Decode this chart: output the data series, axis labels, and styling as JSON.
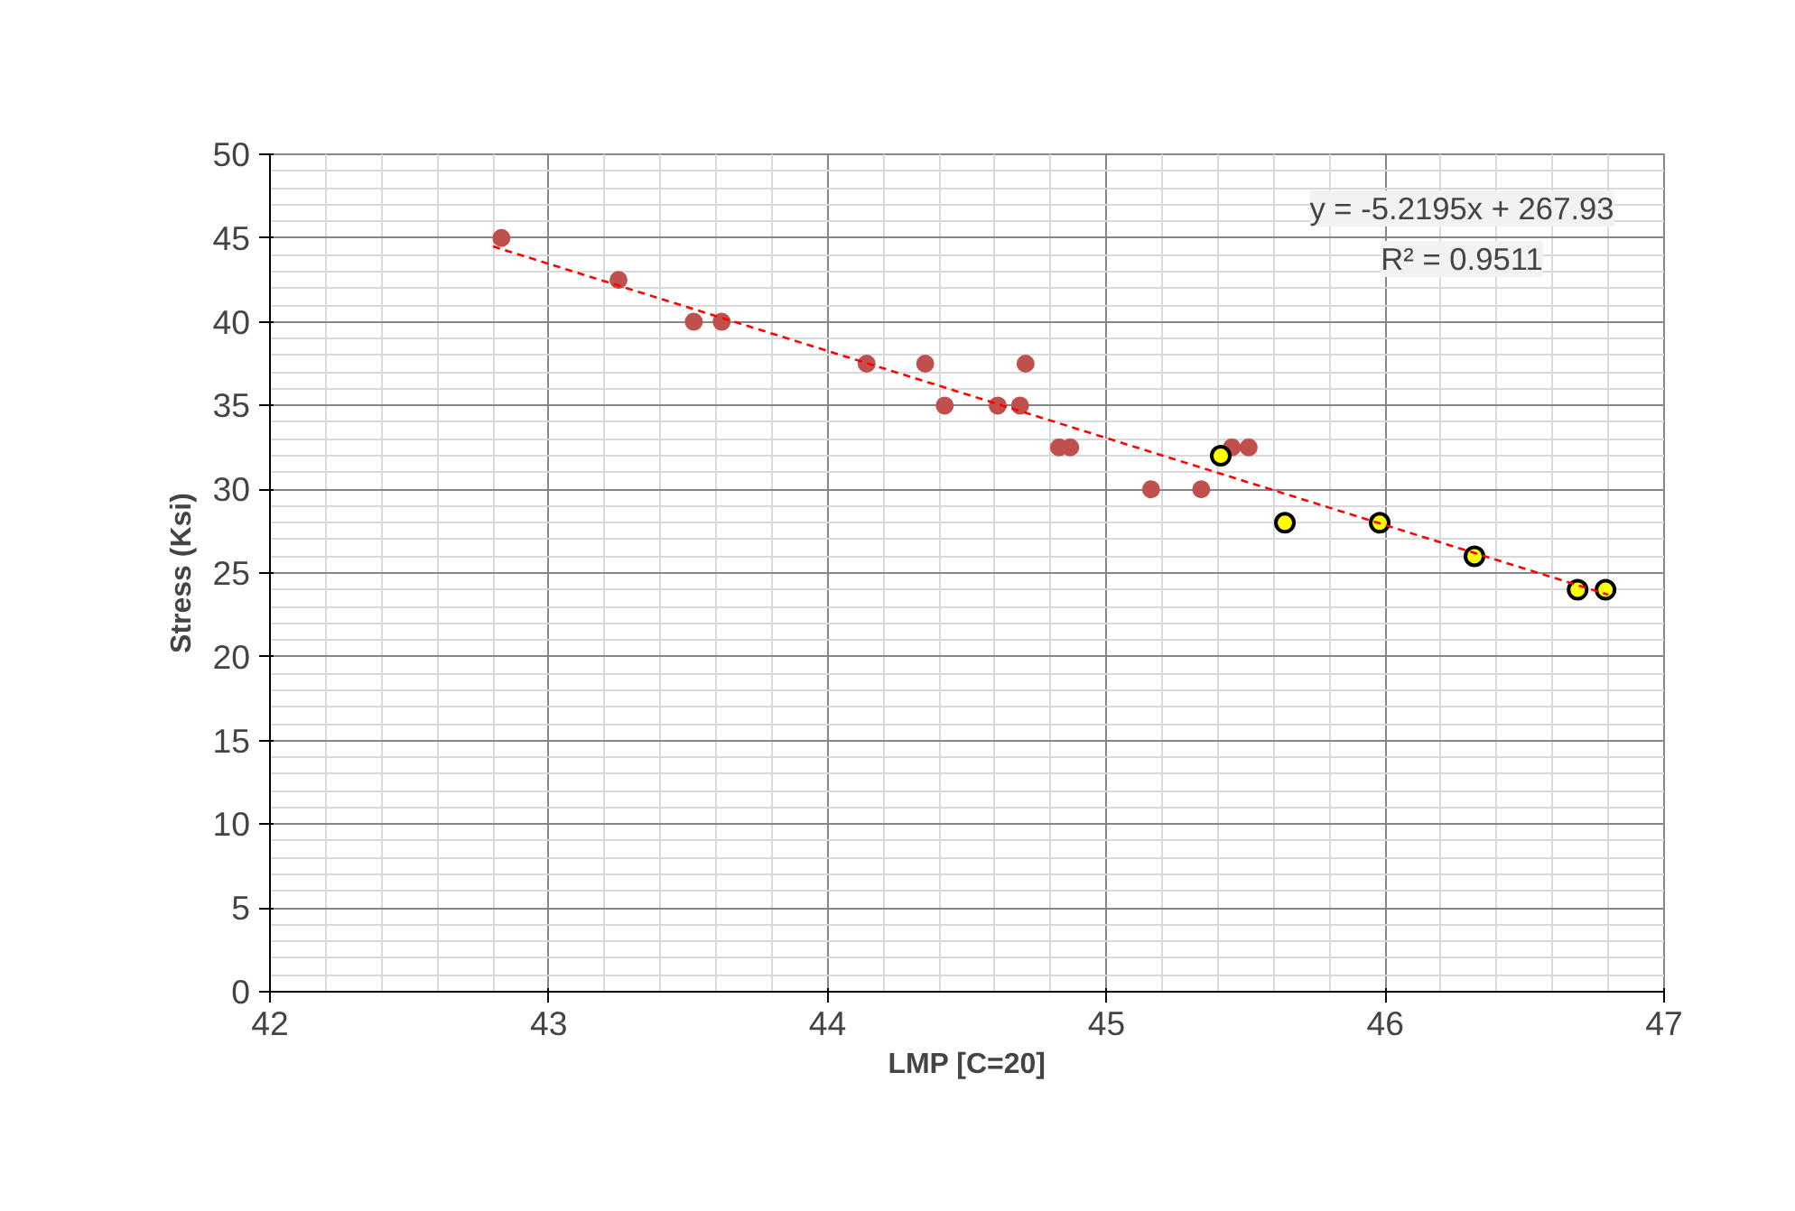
{
  "chart_data": {
    "type": "scatter",
    "xlabel": "LMP [C=20]",
    "ylabel": "Stress (Ksi)",
    "xlim": [
      42,
      47
    ],
    "xticks": [
      42,
      43,
      44,
      45,
      46,
      47
    ],
    "ylim": [
      0,
      50
    ],
    "yticks": [
      0,
      5,
      10,
      15,
      20,
      25,
      30,
      35,
      40,
      45,
      50
    ],
    "grid": true,
    "marker": "circle",
    "annotations": [
      "y = -5.2195x + 267.93",
      "R² = 0.9511"
    ],
    "series": [
      {
        "color": "#c0504d",
        "x": [
          42.83,
          43.25,
          43.52,
          43.62,
          44.14,
          44.35,
          44.42,
          44.61,
          44.69,
          44.71,
          44.83,
          44.87,
          45.16,
          45.34,
          45.45,
          45.51
        ],
        "values": [
          45,
          42.5,
          40,
          40,
          37.5,
          37.5,
          35,
          35,
          35,
          37.5,
          32.5,
          32.5,
          30,
          30,
          32.5,
          32.5
        ]
      },
      {
        "color": "#ffff00",
        "x": [
          45.41,
          45.64,
          45.98,
          46.32,
          46.69,
          46.79
        ],
        "values": [
          32,
          28,
          28,
          26,
          24,
          24
        ]
      },
      {
        "type": "line",
        "line_style": "dashed",
        "marker": "none",
        "color": "#ff0000",
        "x": [
          42.8,
          46.8
        ],
        "values": [
          44.5,
          23.7
        ]
      }
    ]
  }
}
